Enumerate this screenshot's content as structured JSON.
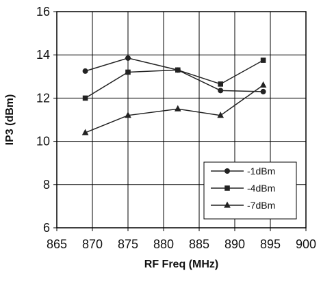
{
  "chart_data": {
    "type": "line",
    "title": "",
    "xlabel": "RF Freq (MHz)",
    "ylabel": "IP3 (dBm)",
    "xlim": [
      865,
      900
    ],
    "ylim": [
      6,
      16
    ],
    "x_ticks": [
      865,
      870,
      875,
      880,
      885,
      890,
      895,
      900
    ],
    "y_ticks": [
      6,
      8,
      10,
      12,
      14,
      16
    ],
    "grid": true,
    "legend_position": "bottom-right",
    "series": [
      {
        "name": "-1dBm",
        "marker": "circle",
        "x": [
          869,
          875,
          882,
          888,
          894
        ],
        "values": [
          13.25,
          13.85,
          13.3,
          12.35,
          12.3
        ]
      },
      {
        "name": "-4dBm",
        "marker": "square",
        "x": [
          869,
          875,
          882,
          888,
          894
        ],
        "values": [
          12.0,
          13.2,
          13.3,
          12.65,
          13.75
        ]
      },
      {
        "name": "-7dBm",
        "marker": "triangle",
        "x": [
          869,
          875,
          882,
          888,
          894
        ],
        "values": [
          10.4,
          11.2,
          11.5,
          11.2,
          12.6
        ]
      }
    ]
  }
}
